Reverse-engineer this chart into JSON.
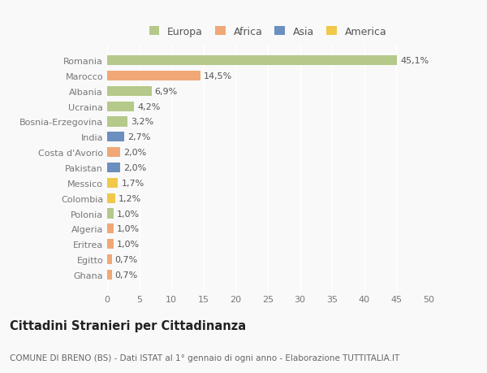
{
  "categories": [
    "Romania",
    "Marocco",
    "Albania",
    "Ucraina",
    "Bosnia-Erzegovina",
    "India",
    "Costa d'Avorio",
    "Pakistan",
    "Messico",
    "Colombia",
    "Polonia",
    "Algeria",
    "Eritrea",
    "Egitto",
    "Ghana"
  ],
  "values": [
    45.1,
    14.5,
    6.9,
    4.2,
    3.2,
    2.7,
    2.0,
    2.0,
    1.7,
    1.2,
    1.0,
    1.0,
    1.0,
    0.7,
    0.7
  ],
  "labels": [
    "45,1%",
    "14,5%",
    "6,9%",
    "4,2%",
    "3,2%",
    "2,7%",
    "2,0%",
    "2,0%",
    "1,7%",
    "1,2%",
    "1,0%",
    "1,0%",
    "1,0%",
    "0,7%",
    "0,7%"
  ],
  "colors": [
    "#b5c98a",
    "#f0a876",
    "#b5c98a",
    "#b5c98a",
    "#b5c98a",
    "#6b8fbf",
    "#f0a876",
    "#6b8fbf",
    "#f0c84a",
    "#f0c84a",
    "#b5c98a",
    "#f0a876",
    "#f0a876",
    "#f0a876",
    "#f0a876"
  ],
  "legend_labels": [
    "Europa",
    "Africa",
    "Asia",
    "America"
  ],
  "legend_colors": [
    "#b5c98a",
    "#f0a876",
    "#6b8fbf",
    "#f0c84a"
  ],
  "xlim": [
    0,
    50
  ],
  "xticks": [
    0,
    5,
    10,
    15,
    20,
    25,
    30,
    35,
    40,
    45,
    50
  ],
  "title": "Cittadini Stranieri per Cittadinanza",
  "subtitle": "COMUNE DI BRENO (BS) - Dati ISTAT al 1° gennaio di ogni anno - Elaborazione TUTTITALIA.IT",
  "background_color": "#f9f9f9",
  "bar_height": 0.65,
  "label_fontsize": 8,
  "tick_fontsize": 8,
  "title_fontsize": 10.5,
  "subtitle_fontsize": 7.5,
  "legend_fontsize": 9
}
